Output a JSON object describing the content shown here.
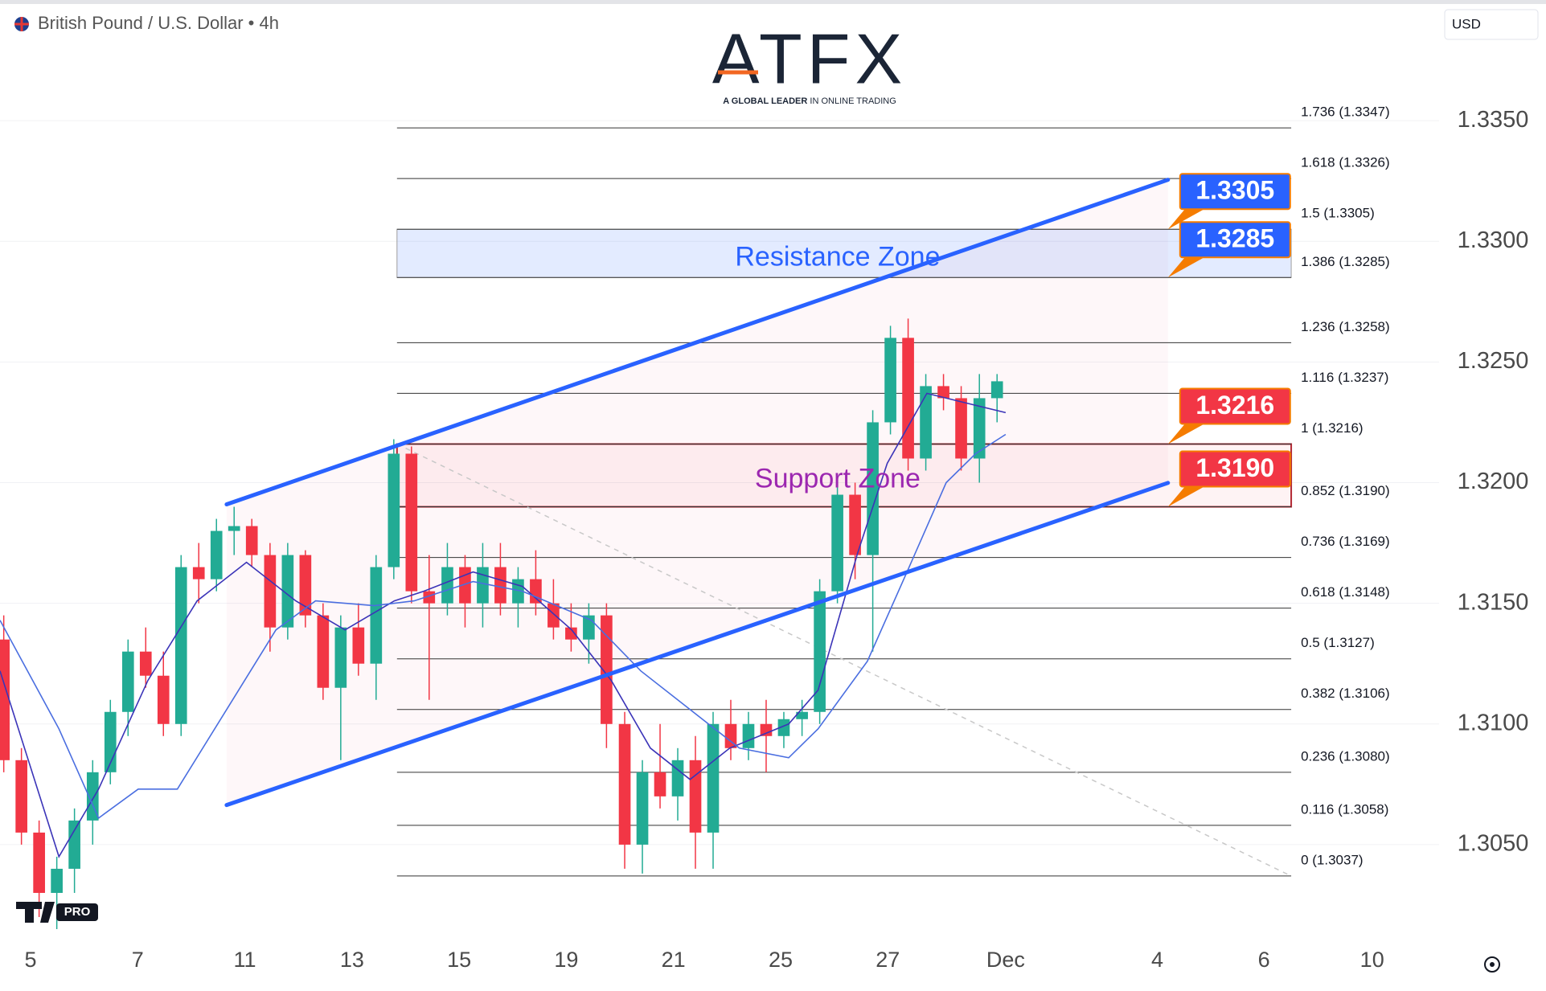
{
  "header": {
    "symbol": "British Pound / U.S. Dollar • 4h",
    "currency": "USD"
  },
  "logo": {
    "name": "ATFX",
    "tagline_bold": "A GLOBAL LEADER",
    "tagline": "IN ONLINE TRADING"
  },
  "badge": "PRO",
  "chart_data": {
    "type": "candlestick",
    "up_color": "#22ab94",
    "down_color": "#f23645",
    "x": [
      -0.5,
      -0.17,
      0.16,
      0.49,
      0.82,
      1.16,
      1.49,
      1.82,
      2.15,
      2.48,
      2.81,
      3.14,
      3.47,
      3.8,
      4.13,
      4.47,
      4.8,
      5.13,
      5.46,
      5.79,
      6.12,
      6.45,
      6.78,
      7.11,
      7.44,
      7.78,
      8.11,
      8.44,
      8.77,
      9.1,
      9.43,
      9.76,
      10.09,
      10.42,
      10.75,
      11.09,
      11.42,
      11.75,
      12.08,
      12.41,
      12.74,
      13.07,
      13.4,
      13.73,
      14.06,
      14.4,
      14.73,
      15.06,
      15.39,
      15.72,
      16.05,
      16.38,
      16.71,
      17.04,
      17.37,
      17.71,
      18.04
    ],
    "open": [
      1.3135,
      1.3085,
      1.3055,
      1.303,
      1.304,
      1.306,
      1.308,
      1.3105,
      1.313,
      1.312,
      1.31,
      1.3165,
      1.316,
      1.318,
      1.3182,
      1.317,
      1.314,
      1.317,
      1.3145,
      1.3115,
      1.314,
      1.3125,
      1.3165,
      1.3212,
      1.3155,
      1.315,
      1.3165,
      1.315,
      1.3165,
      1.315,
      1.316,
      1.315,
      1.314,
      1.3135,
      1.3145,
      1.31,
      1.305,
      1.308,
      1.307,
      1.3085,
      1.3055,
      1.31,
      1.309,
      1.31,
      1.3095,
      1.3102,
      1.3105,
      1.3155,
      1.3195,
      1.317,
      1.3225,
      1.326,
      1.321,
      1.324,
      1.3235,
      1.321,
      1.3235
    ],
    "high": [
      1.3145,
      1.309,
      1.306,
      1.3045,
      1.3065,
      1.3085,
      1.311,
      1.3135,
      1.314,
      1.313,
      1.317,
      1.3175,
      1.3185,
      1.319,
      1.3185,
      1.3175,
      1.3175,
      1.3172,
      1.315,
      1.3145,
      1.315,
      1.317,
      1.3218,
      1.3215,
      1.317,
      1.3175,
      1.317,
      1.3175,
      1.3175,
      1.3165,
      1.3172,
      1.316,
      1.315,
      1.315,
      1.315,
      1.3105,
      1.3085,
      1.31,
      1.309,
      1.3095,
      1.3105,
      1.311,
      1.3105,
      1.311,
      1.3105,
      1.311,
      1.316,
      1.32,
      1.32,
      1.323,
      1.3265,
      1.3268,
      1.3245,
      1.3245,
      1.324,
      1.3245,
      1.3245
    ],
    "low": [
      1.308,
      1.305,
      1.302,
      1.3015,
      1.303,
      1.305,
      1.3075,
      1.3095,
      1.3115,
      1.3095,
      1.3095,
      1.315,
      1.3155,
      1.317,
      1.3165,
      1.313,
      1.3135,
      1.314,
      1.311,
      1.3085,
      1.312,
      1.311,
      1.316,
      1.315,
      1.311,
      1.3145,
      1.314,
      1.314,
      1.3145,
      1.314,
      1.3145,
      1.3135,
      1.313,
      1.3125,
      1.309,
      1.304,
      1.3038,
      1.3065,
      1.306,
      1.304,
      1.304,
      1.3085,
      1.3085,
      1.308,
      1.309,
      1.3095,
      1.31,
      1.315,
      1.316,
      1.313,
      1.322,
      1.3205,
      1.3205,
      1.323,
      1.3205,
      1.32,
      1.3225
    ],
    "close": [
      1.3085,
      1.3055,
      1.303,
      1.304,
      1.306,
      1.308,
      1.3105,
      1.313,
      1.312,
      1.31,
      1.3165,
      1.316,
      1.318,
      1.3182,
      1.317,
      1.314,
      1.317,
      1.3145,
      1.3115,
      1.314,
      1.3125,
      1.3165,
      1.3212,
      1.3155,
      1.315,
      1.3165,
      1.315,
      1.3165,
      1.315,
      1.316,
      1.315,
      1.314,
      1.3135,
      1.3145,
      1.31,
      1.305,
      1.308,
      1.307,
      1.3085,
      1.3055,
      1.31,
      1.309,
      1.31,
      1.3095,
      1.3102,
      1.3105,
      1.3155,
      1.3195,
      1.317,
      1.3225,
      1.326,
      1.321,
      1.324,
      1.3235,
      1.321,
      1.3235,
      1.3242
    ],
    "xlim": [
      -0.57,
      26.29
    ],
    "xticks": [
      {
        "value": 0,
        "label": "5"
      },
      {
        "value": 2,
        "label": "7"
      },
      {
        "value": 4,
        "label": "11"
      },
      {
        "value": 6,
        "label": "13"
      },
      {
        "value": 8,
        "label": "15"
      },
      {
        "value": 10,
        "label": "19"
      },
      {
        "value": 12,
        "label": "21"
      },
      {
        "value": 14,
        "label": "25"
      },
      {
        "value": 16,
        "label": "27"
      },
      {
        "value": 18.2,
        "label": "Dec"
      },
      {
        "value": 21.03,
        "label": "4"
      },
      {
        "value": 23.02,
        "label": "6"
      },
      {
        "value": 25.04,
        "label": "10"
      }
    ],
    "ylim": [
      1.3012,
      1.3398
    ],
    "yticks": [
      {
        "value": 1.305,
        "label": "1.3050"
      },
      {
        "value": 1.31,
        "label": "1.3100"
      },
      {
        "value": 1.315,
        "label": "1.3150"
      },
      {
        "value": 1.32,
        "label": "1.3200"
      },
      {
        "value": 1.325,
        "label": "1.3250"
      },
      {
        "value": 1.33,
        "label": "1.3300"
      },
      {
        "value": 1.335,
        "label": "1.3350"
      }
    ],
    "grid": true,
    "moving_averages": [
      {
        "color": "#3b34b8",
        "x": [
          -0.57,
          0.53,
          1.27,
          2.19,
          3.11,
          4.03,
          4.95,
          5.87,
          6.79,
          7.34,
          8.26,
          9.18,
          10.1,
          10.84,
          11.57,
          12.31,
          13.05,
          14.15,
          14.7,
          15.44,
          15.99,
          16.73,
          17.46,
          18.2
        ],
        "values": [
          1.3122,
          1.3045,
          1.3073,
          1.3118,
          1.3151,
          1.3167,
          1.3151,
          1.3139,
          1.3151,
          1.3155,
          1.3163,
          1.3157,
          1.3139,
          1.3118,
          1.309,
          1.3077,
          1.309,
          1.31,
          1.3114,
          1.3171,
          1.3208,
          1.3237,
          1.3233,
          1.3229
        ]
      },
      {
        "color": "#4a6ee0",
        "x": [
          -0.57,
          0.53,
          1.27,
          2.01,
          2.74,
          3.66,
          4.58,
          5.32,
          6.42,
          7.16,
          8.26,
          9.18,
          10.47,
          11.39,
          12.31,
          13.23,
          14.15,
          14.7,
          15.62,
          16.36,
          17.09,
          17.64,
          18.2
        ],
        "values": [
          1.3143,
          1.3098,
          1.3061,
          1.3073,
          1.3073,
          1.3106,
          1.3139,
          1.3151,
          1.3149,
          1.3151,
          1.3159,
          1.3155,
          1.3143,
          1.3122,
          1.3106,
          1.309,
          1.3086,
          1.3098,
          1.3126,
          1.3163,
          1.32,
          1.3212,
          1.322
        ]
      }
    ],
    "channel": {
      "color": "#2962ff",
      "fill": "rgba(233,30,99,0.035)",
      "upper": {
        "x": [
          3.66,
          21.23
        ],
        "values": [
          1.3191,
          1.33255
        ]
      },
      "lower": {
        "x": [
          3.66,
          21.23
        ],
        "values": [
          1.30664,
          1.31999
        ]
      }
    },
    "fibonacci": {
      "color": "#333333",
      "x": [
        6.84,
        23.53
      ],
      "levels": [
        {
          "value": 1.3347,
          "label": "1.736 (1.3347)"
        },
        {
          "value": 1.3326,
          "label": "1.618 (1.3326)"
        },
        {
          "value": 1.3305,
          "label": "1.5 (1.3305)"
        },
        {
          "value": 1.3285,
          "label": "1.386 (1.3285)"
        },
        {
          "value": 1.3258,
          "label": "1.236 (1.3258)"
        },
        {
          "value": 1.3237,
          "label": "1.116 (1.3237)"
        },
        {
          "value": 1.3216,
          "label": "1 (1.3216)"
        },
        {
          "value": 1.319,
          "label": "0.852 (1.3190)"
        },
        {
          "value": 1.3169,
          "label": "0.736 (1.3169)"
        },
        {
          "value": 1.3148,
          "label": "0.618 (1.3148)"
        },
        {
          "value": 1.3127,
          "label": "0.5 (1.3127)"
        },
        {
          "value": 1.3106,
          "label": "0.382 (1.3106)"
        },
        {
          "value": 1.308,
          "label": "0.236 (1.3080)"
        },
        {
          "value": 1.3058,
          "label": "0.116 (1.3058)"
        },
        {
          "value": 1.3037,
          "label": "0 (1.3037)"
        }
      ],
      "anchor": {
        "x": [
          6.84,
          23.53
        ],
        "values": [
          1.3216,
          1.3037
        ]
      }
    },
    "zones": [
      {
        "name": "Resistance Zone",
        "range": [
          1.3285,
          1.3305
        ],
        "color": "#2962ff",
        "fill": "rgba(41,98,255,0.13)",
        "border": "#9e9e9e"
      },
      {
        "name": "Support Zone",
        "range": [
          1.319,
          1.3216
        ],
        "color": "#9c27b0",
        "fill": "rgba(242,54,69,0.06)",
        "border": "#b22833"
      }
    ],
    "price_labels": {
      "values": [
        1.3305,
        1.3285,
        1.3216,
        1.319
      ],
      "value_labels": [
        "1.3305",
        "1.3285",
        "1.3216",
        "1.3190"
      ],
      "colors": [
        "#2962ff",
        "#2962ff",
        "#f23645",
        "#f23645"
      ],
      "border_color": "#f57c00"
    }
  }
}
